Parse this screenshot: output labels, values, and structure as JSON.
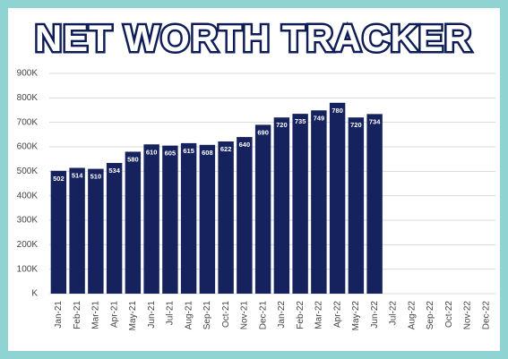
{
  "chart_data": {
    "type": "bar",
    "title": "NET WORTH TRACKER",
    "categories": [
      "Jan-21",
      "Feb-21",
      "Mar-21",
      "Apr-21",
      "May-21",
      "Jun-21",
      "Jul-21",
      "Aug-21",
      "Sep-21",
      "Oct-21",
      "Nov-21",
      "Dec-21",
      "Jan-22",
      "Feb-22",
      "Mar-22",
      "Apr-22",
      "May-22",
      "Jun-22",
      "Jul-22",
      "Aug-22",
      "Sep-22",
      "Oct-22",
      "Nov-22",
      "Dec-22"
    ],
    "values": [
      502,
      514,
      510,
      534,
      580,
      610,
      605,
      615,
      608,
      622,
      640,
      690,
      720,
      735,
      749,
      780,
      720,
      734,
      null,
      null,
      null,
      null,
      null,
      null
    ],
    "color": "#15225e",
    "ylim": [
      0,
      900
    ],
    "yticks": [
      {
        "value": 0,
        "label": "K"
      },
      {
        "value": 100,
        "label": "100K"
      },
      {
        "value": 200,
        "label": "200K"
      },
      {
        "value": 300,
        "label": "300K"
      },
      {
        "value": 400,
        "label": "400K"
      },
      {
        "value": 500,
        "label": "500K"
      },
      {
        "value": 600,
        "label": "600K"
      },
      {
        "value": 700,
        "label": "700K"
      },
      {
        "value": 800,
        "label": "800K"
      },
      {
        "value": 900,
        "label": "900K"
      }
    ],
    "grid": true
  }
}
